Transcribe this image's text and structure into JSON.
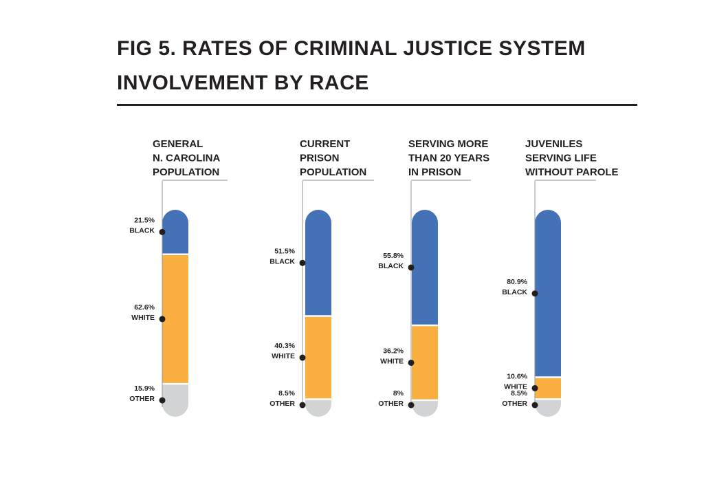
{
  "title": {
    "line1": "FIG 5. RATES OF CRIMINAL JUSTICE SYSTEM",
    "line2": "INVOLVEMENT BY RACE"
  },
  "colors": {
    "black": "#4472b6",
    "white": "#f9b041",
    "other": "#d1d3d4",
    "text": "#231f20"
  },
  "chart_data": {
    "type": "bar",
    "stacked": true,
    "title": "FIG 5. RATES OF CRIMINAL JUSTICE SYSTEM INVOLVEMENT BY RACE",
    "unit": "%",
    "ylim": [
      0,
      100
    ],
    "groups": [
      {
        "header": [
          "GENERAL",
          "N. CAROLINA",
          "POPULATION"
        ],
        "segments": [
          {
            "category": "BLACK",
            "value": 21.5,
            "label": "21.5%"
          },
          {
            "category": "WHITE",
            "value": 62.6,
            "label": "62.6%"
          },
          {
            "category": "OTHER",
            "value": 15.9,
            "label": "15.9%"
          }
        ]
      },
      {
        "header": [
          "CURRENT",
          "PRISON",
          "POPULATION"
        ],
        "segments": [
          {
            "category": "BLACK",
            "value": 51.5,
            "label": "51.5%"
          },
          {
            "category": "WHITE",
            "value": 40.3,
            "label": "40.3%"
          },
          {
            "category": "OTHER",
            "value": 8.5,
            "label": "8.5%"
          }
        ]
      },
      {
        "header": [
          "SERVING MORE",
          "THAN 20 YEARS",
          "IN PRISON"
        ],
        "segments": [
          {
            "category": "BLACK",
            "value": 55.8,
            "label": "55.8%"
          },
          {
            "category": "WHITE",
            "value": 36.2,
            "label": "36.2%"
          },
          {
            "category": "OTHER",
            "value": 8,
            "label": "8%"
          }
        ]
      },
      {
        "header": [
          "JUVENILES",
          "SERVING LIFE",
          "WITHOUT PAROLE"
        ],
        "segments": [
          {
            "category": "BLACK",
            "value": 80.9,
            "label": "80.9%"
          },
          {
            "category": "WHITE",
            "value": 10.6,
            "label": "10.6%"
          },
          {
            "category": "OTHER",
            "value": 8.5,
            "label": "8.5%"
          }
        ]
      }
    ]
  }
}
